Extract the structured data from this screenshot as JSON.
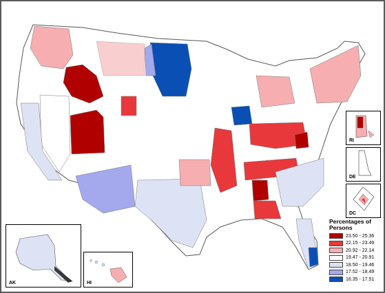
{
  "legend": {
    "title": "Percentages of Persons",
    "classes": [
      {
        "label": "23.50 - 25.36",
        "color": "#b00000"
      },
      {
        "label": "22.15 - 23.49",
        "color": "#e8383b"
      },
      {
        "label": "20.92 - 22.14",
        "color": "#f6aeb0"
      },
      {
        "label": "19.47 - 20.91",
        "color": "#ffffff"
      },
      {
        "label": "18.50 - 19.46",
        "color": "#dde2f4"
      },
      {
        "label": "17.52 - 18.49",
        "color": "#a4a8ec"
      },
      {
        "label": "16.35 - 17.51",
        "color": "#0a4fb4"
      }
    ]
  },
  "insets": {
    "alaska": "AK",
    "hawaii": "HI",
    "rhode_island": "RI",
    "delaware": "DE",
    "dc": "DC"
  }
}
